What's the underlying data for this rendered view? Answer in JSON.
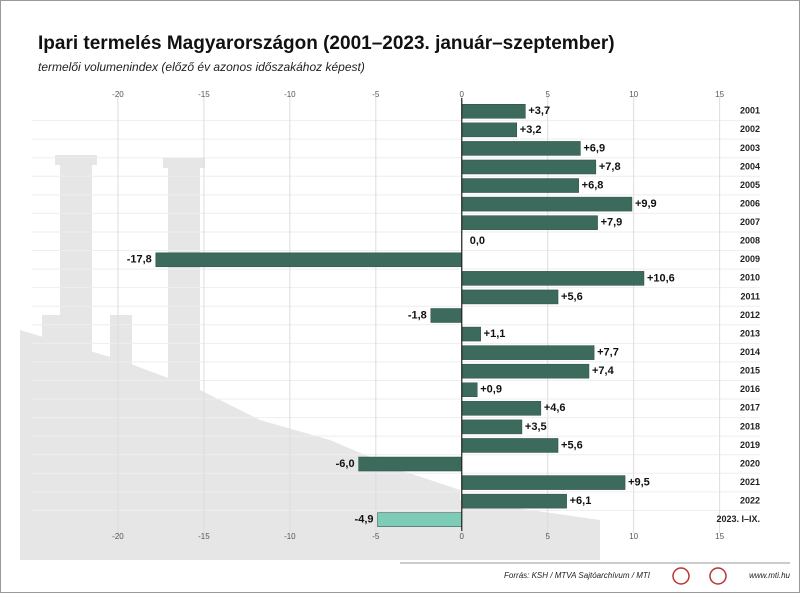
{
  "chart_data": {
    "type": "barh",
    "title": "Ipari termelés Magyarországon (2001–2023. január–szeptember)",
    "subtitle": "termelői volumenindex (előző év azonos időszakához képest)",
    "categories": [
      "2001",
      "2002",
      "2003",
      "2004",
      "2005",
      "2006",
      "2007",
      "2008",
      "2009",
      "2010",
      "2011",
      "2012",
      "2013",
      "2014",
      "2015",
      "2016",
      "2017",
      "2018",
      "2019",
      "2020",
      "2021",
      "2022",
      "2023. I–IX."
    ],
    "values": [
      3.7,
      3.2,
      6.9,
      7.8,
      6.8,
      9.9,
      7.9,
      0.0,
      -17.8,
      10.6,
      5.6,
      -1.8,
      1.1,
      7.7,
      7.4,
      0.9,
      4.6,
      3.5,
      5.6,
      -6.0,
      9.5,
      6.1,
      -4.9
    ],
    "value_labels": [
      "+3,7",
      "+3,2",
      "+6,9",
      "+7,8",
      "+6,8",
      "+9,9",
      "+7,9",
      "0,0",
      "-17,8",
      "+10,6",
      "+5,6",
      "-1,8",
      "+1,1",
      "+7,7",
      "+7,4",
      "+0,9",
      "+4,6",
      "+3,5",
      "+5,6",
      "-6,0",
      "+9,5",
      "+6,1",
      "-4,9"
    ],
    "colors": [
      "#3c6b5d",
      "#3c6b5d",
      "#3c6b5d",
      "#3c6b5d",
      "#3c6b5d",
      "#3c6b5d",
      "#3c6b5d",
      "#3c6b5d",
      "#3c6b5d",
      "#3c6b5d",
      "#3c6b5d",
      "#3c6b5d",
      "#3c6b5d",
      "#3c6b5d",
      "#3c6b5d",
      "#3c6b5d",
      "#3c6b5d",
      "#3c6b5d",
      "#3c6b5d",
      "#3c6b5d",
      "#3c6b5d",
      "#3c6b5d",
      "#7ecbb8"
    ],
    "xlim": [
      -25,
      17
    ],
    "xticks": [
      -20,
      -15,
      -10,
      -5,
      0,
      5,
      10,
      15
    ],
    "grid": true,
    "source": "Forrás: KSH / MTVA Sajtóarchívum / MTI",
    "website": "www.mti.hu"
  }
}
